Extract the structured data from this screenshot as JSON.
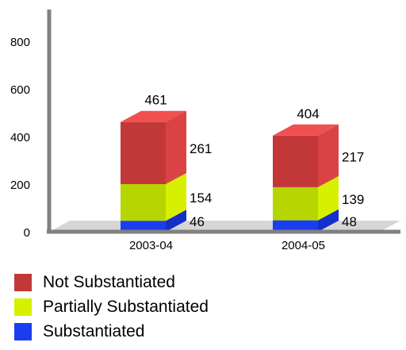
{
  "chart_data": {
    "type": "bar",
    "stacked": true,
    "three_d": true,
    "categories": [
      "2003-04",
      "2004-05"
    ],
    "series": [
      {
        "name": "Substantiated",
        "values": [
          46,
          48
        ],
        "color": "#1a3df0",
        "side_color": "#1530c8",
        "top_color": "#3a5cff"
      },
      {
        "name": "Partially Substantiated",
        "values": [
          154,
          139
        ],
        "color": "#b5d600",
        "side_color": "#d6f000",
        "top_color": "#e3ff30"
      },
      {
        "name": "Not Substantiated",
        "values": [
          261,
          217
        ],
        "color": "#c23838",
        "side_color": "#d94343",
        "top_color": "#f05050"
      }
    ],
    "totals": [
      461,
      404
    ],
    "ylim": [
      0,
      900
    ],
    "yticks": [
      0,
      200,
      400,
      600,
      800
    ],
    "xlabel": "",
    "ylabel": "",
    "grid": false,
    "legend_position": "bottom"
  },
  "legend": {
    "items": [
      {
        "label": "Not Substantiated",
        "color": "#c23838"
      },
      {
        "label": "Partially Substantiated",
        "color": "#d6f000"
      },
      {
        "label": "Substantiated",
        "color": "#1a3df0"
      }
    ]
  },
  "axis_color": "#808080"
}
